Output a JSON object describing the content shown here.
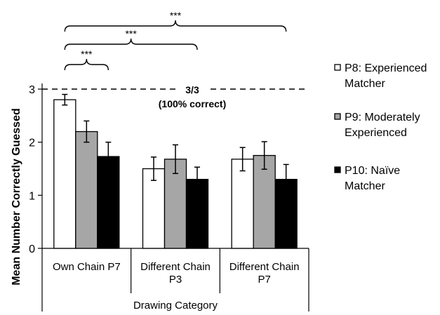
{
  "chart_data": {
    "type": "bar",
    "categories": [
      [
        "Own Chain P7"
      ],
      [
        "Different Chain",
        "P3"
      ],
      [
        "Different Chain",
        "P7"
      ]
    ],
    "series": [
      {
        "name": "P8: Experienced Matcher",
        "legend_lines": [
          "P8: Experienced",
          "Matcher"
        ],
        "color": "#ffffff",
        "values": [
          2.8,
          1.5,
          1.68
        ],
        "errors": [
          0.1,
          0.22,
          0.22
        ]
      },
      {
        "name": "P9: Moderately Experienced",
        "legend_lines": [
          "P9: Moderately",
          "Experienced"
        ],
        "color": "#a6a6a6",
        "values": [
          2.2,
          1.68,
          1.75
        ],
        "errors": [
          0.2,
          0.27,
          0.26
        ]
      },
      {
        "name": "P10: Naïve Matcher",
        "legend_lines": [
          "P10: Naïve",
          "Matcher"
        ],
        "color": "#000000",
        "values": [
          1.73,
          1.3,
          1.3
        ],
        "errors": [
          0.27,
          0.23,
          0.28
        ]
      }
    ],
    "ylabel": "Mean Number Correctly Guessed",
    "xlabel": "Drawing Category",
    "ylim": [
      0,
      3
    ],
    "yticks": [
      0,
      1,
      2,
      3
    ],
    "grid": false,
    "legend_position": "right",
    "reference_line": {
      "y": 3,
      "style": "dashed",
      "label_lines": [
        "3/3",
        "(100% correct)"
      ]
    },
    "significance": [
      {
        "from": "Own Chain P7|P8: Experienced Matcher",
        "to": "Own Chain P7|P10: Naïve Matcher",
        "label": "***"
      },
      {
        "from": "Own Chain P7|P8: Experienced Matcher",
        "to": "Different Chain P3|P10: Naïve Matcher",
        "label": "***"
      },
      {
        "from": "Own Chain P7|P8: Experienced Matcher",
        "to": "Different Chain P7|P10: Naïve Matcher",
        "label": "***"
      }
    ]
  }
}
